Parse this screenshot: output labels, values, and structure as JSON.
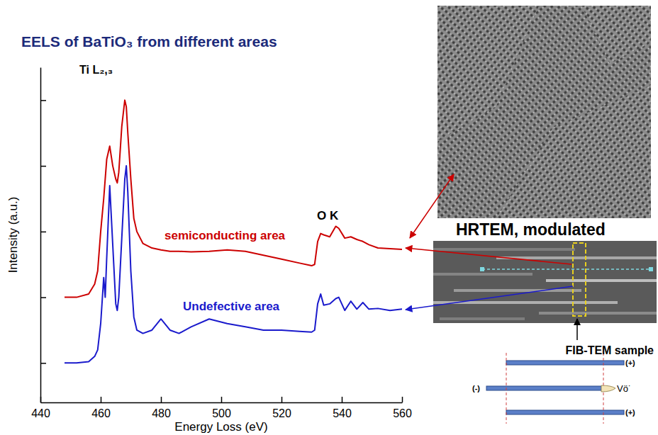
{
  "chart_data": {
    "type": "line",
    "title": "EELS of BaTiO₃ from different areas",
    "x_label": "Energy Loss (eV)",
    "y_label": "Intensity (a.u.)",
    "x": [
      448,
      452,
      456,
      458,
      459,
      460,
      461,
      461.5,
      462,
      463,
      464,
      465,
      465.5,
      466,
      467,
      468,
      468.5,
      469,
      470,
      471,
      472,
      474,
      477,
      480,
      483,
      486,
      490,
      496,
      502,
      508,
      514,
      520,
      526,
      530,
      531,
      532,
      533,
      534,
      536,
      538,
      539,
      541,
      543,
      545,
      547,
      549,
      552,
      556,
      560
    ],
    "series": [
      {
        "name": "semiconducting area",
        "color": "#cc0000",
        "values": [
          2.0,
          2.0,
          2.05,
          2.2,
          2.4,
          3.0,
          3.5,
          3.8,
          4.1,
          4.3,
          4.0,
          3.8,
          3.74,
          3.9,
          4.6,
          5.0,
          4.9,
          4.5,
          3.8,
          3.2,
          3.0,
          2.82,
          2.75,
          2.72,
          2.7,
          2.7,
          2.69,
          2.7,
          2.72,
          2.7,
          2.64,
          2.58,
          2.52,
          2.48,
          2.5,
          2.85,
          2.97,
          2.95,
          2.92,
          3.08,
          3.05,
          2.9,
          2.92,
          2.88,
          2.85,
          2.8,
          2.75,
          2.74,
          2.73
        ]
      },
      {
        "name": "Undefective area",
        "color": "#1a1acc",
        "values": [
          1.0,
          1.0,
          1.02,
          1.1,
          1.2,
          1.6,
          2.3,
          2.0,
          2.6,
          3.7,
          2.8,
          1.9,
          1.8,
          2.0,
          2.9,
          3.8,
          4.0,
          3.6,
          2.4,
          1.7,
          1.5,
          1.45,
          1.5,
          1.67,
          1.5,
          1.45,
          1.55,
          1.67,
          1.6,
          1.55,
          1.5,
          1.5,
          1.48,
          1.47,
          1.5,
          1.9,
          2.05,
          1.88,
          1.9,
          1.98,
          2.0,
          1.8,
          1.94,
          1.82,
          1.92,
          1.82,
          1.83,
          1.8,
          1.82
        ]
      }
    ],
    "xlim": [
      440,
      560
    ],
    "xticks": [
      440,
      460,
      480,
      500,
      520,
      540,
      560
    ],
    "ylim": [
      0.4,
      5.5
    ],
    "yticks": [
      1,
      2,
      3,
      4,
      5
    ],
    "tick_labels": "x",
    "grid": false,
    "annotations": [
      "Ti L₂,₃",
      "O K",
      "HRTEM, modulated",
      "FIB-TEM sample",
      "(+)",
      "(-)",
      "(+)",
      "Vö˙"
    ]
  }
}
